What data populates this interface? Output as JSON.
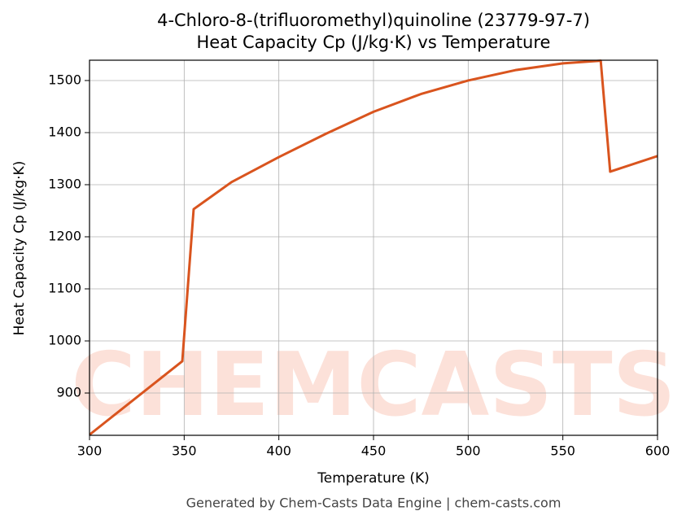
{
  "chart_data": {
    "type": "line",
    "title": "4-Chloro-8-(trifluoromethyl)quinoline (23779-97-7)",
    "subtitle": "Heat Capacity Cp (J/kg·K) vs Temperature",
    "x_label": "Temperature (K)",
    "y_label": "Heat Capacity Cp (J/kg·K)",
    "watermark": "CHEMCASTS",
    "footer": "Generated by Chem-Casts Data Engine | chem-casts.com",
    "x": [
      300,
      349,
      355,
      375,
      400,
      425,
      450,
      475,
      500,
      525,
      550,
      570,
      575,
      600
    ],
    "series": [
      {
        "name": "Cp",
        "color": "#d9541e",
        "values": [
          820,
          961,
          1253,
          1305,
          1353,
          1398,
          1440,
          1474,
          1500,
          1520,
          1533,
          1538,
          1325,
          1355
        ]
      }
    ],
    "xlim": [
      300,
      600
    ],
    "xticks": [
      300,
      350,
      400,
      450,
      500,
      550,
      600
    ],
    "ylim": [
      818.8,
      1539
    ],
    "yticks": [
      900,
      1000,
      1100,
      1200,
      1300,
      1400,
      1500
    ],
    "grid": true
  }
}
